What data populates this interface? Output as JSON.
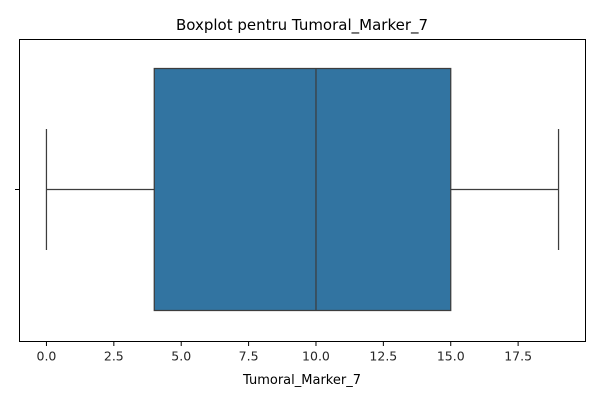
{
  "chart_data": {
    "type": "boxplot",
    "title": "Boxplot pentru Tumoral_Marker_7",
    "xlabel": "Tumoral_Marker_7",
    "ylabel": "",
    "orientation": "horizontal",
    "xlim": [
      -1.0,
      20.0
    ],
    "x_ticks": [
      0.0,
      2.5,
      5.0,
      7.5,
      10.0,
      12.5,
      15.0,
      17.5
    ],
    "x_tick_labels": [
      "0.0",
      "2.5",
      "5.0",
      "7.5",
      "10.0",
      "12.5",
      "15.0",
      "17.5"
    ],
    "grid": false,
    "legend": "none",
    "series": [
      {
        "whisker_low": 0,
        "q1": 4,
        "median": 10,
        "q3": 15,
        "whisker_high": 19
      }
    ],
    "colors": {
      "box_fill": "#3274a1",
      "line": "#3d3d3d",
      "axis": "#000000"
    }
  }
}
